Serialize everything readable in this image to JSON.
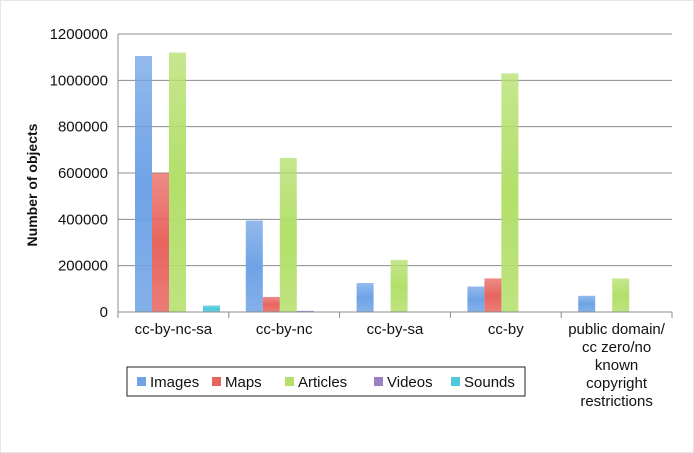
{
  "chart_data": {
    "type": "bar",
    "ylabel": "Number of objects",
    "xlabel": "",
    "title": "",
    "ylim": [
      0,
      1200000
    ],
    "yticks": [
      0,
      200000,
      400000,
      600000,
      800000,
      1000000,
      1200000
    ],
    "ytick_labels": [
      "0",
      "200000",
      "400000",
      "600000",
      "800000",
      "1000000",
      "1200000"
    ],
    "grid": "horizontal",
    "legend_position": "bottom",
    "categories": [
      [
        "cc-by-nc-sa"
      ],
      [
        "cc-by-nc"
      ],
      [
        "cc-by-sa"
      ],
      [
        "cc-by"
      ],
      [
        "public domain/",
        "cc zero/no",
        "known",
        "copyright",
        "restrictions"
      ]
    ],
    "series": [
      {
        "name": "Images",
        "color": "#6fa3e6",
        "values": [
          1105000,
          395000,
          125000,
          110000,
          70000
        ]
      },
      {
        "name": "Maps",
        "color": "#e8655f",
        "values": [
          600000,
          65000,
          0,
          145000,
          0
        ]
      },
      {
        "name": "Articles",
        "color": "#b3df6a",
        "values": [
          1120000,
          665000,
          225000,
          1030000,
          145000
        ]
      },
      {
        "name": "Videos",
        "color": "#9b7fc4",
        "values": [
          0,
          5000,
          0,
          0,
          0
        ]
      },
      {
        "name": "Sounds",
        "color": "#4fc7dd",
        "values": [
          28000,
          0,
          0,
          0,
          0
        ]
      }
    ]
  }
}
